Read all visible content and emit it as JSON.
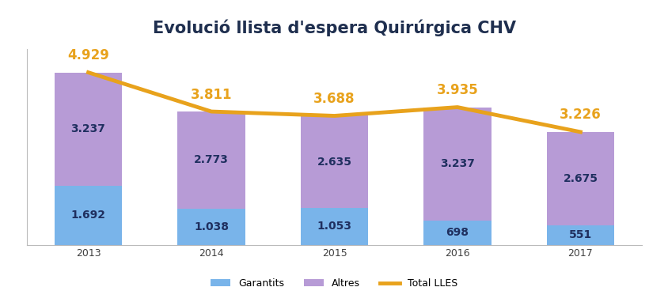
{
  "chart_data": {
    "type": "bar",
    "title": "Evolució llista d'espera Quirúrgica CHV",
    "categories": [
      "2013",
      "2014",
      "2015",
      "2016",
      "2017"
    ],
    "stacked": true,
    "data_labels": true,
    "tick_labels": "x",
    "legend": "lower center",
    "ylim": [
      0,
      5600
    ],
    "yticks": [],
    "series": [
      {
        "name": "Garantits",
        "type": "bar",
        "color": "#79b4ea",
        "values": [
          1692,
          1038,
          1053,
          698,
          551
        ],
        "value_labels": [
          "1.692",
          "1.038",
          "1.053",
          "698",
          "551"
        ]
      },
      {
        "name": "Altres",
        "type": "bar",
        "color": "#b79bd6",
        "values": [
          3237,
          2773,
          2635,
          3237,
          2675
        ],
        "value_labels": [
          "3.237",
          "2.773",
          "2.635",
          "3.237",
          "2.675"
        ]
      },
      {
        "name": "Total LLES",
        "type": "line",
        "color": "#e8a21c",
        "values": [
          4929,
          3811,
          3688,
          3935,
          3226
        ],
        "value_labels": [
          "4.929",
          "3.811",
          "3.688",
          "3.935",
          "3.226"
        ]
      }
    ]
  }
}
